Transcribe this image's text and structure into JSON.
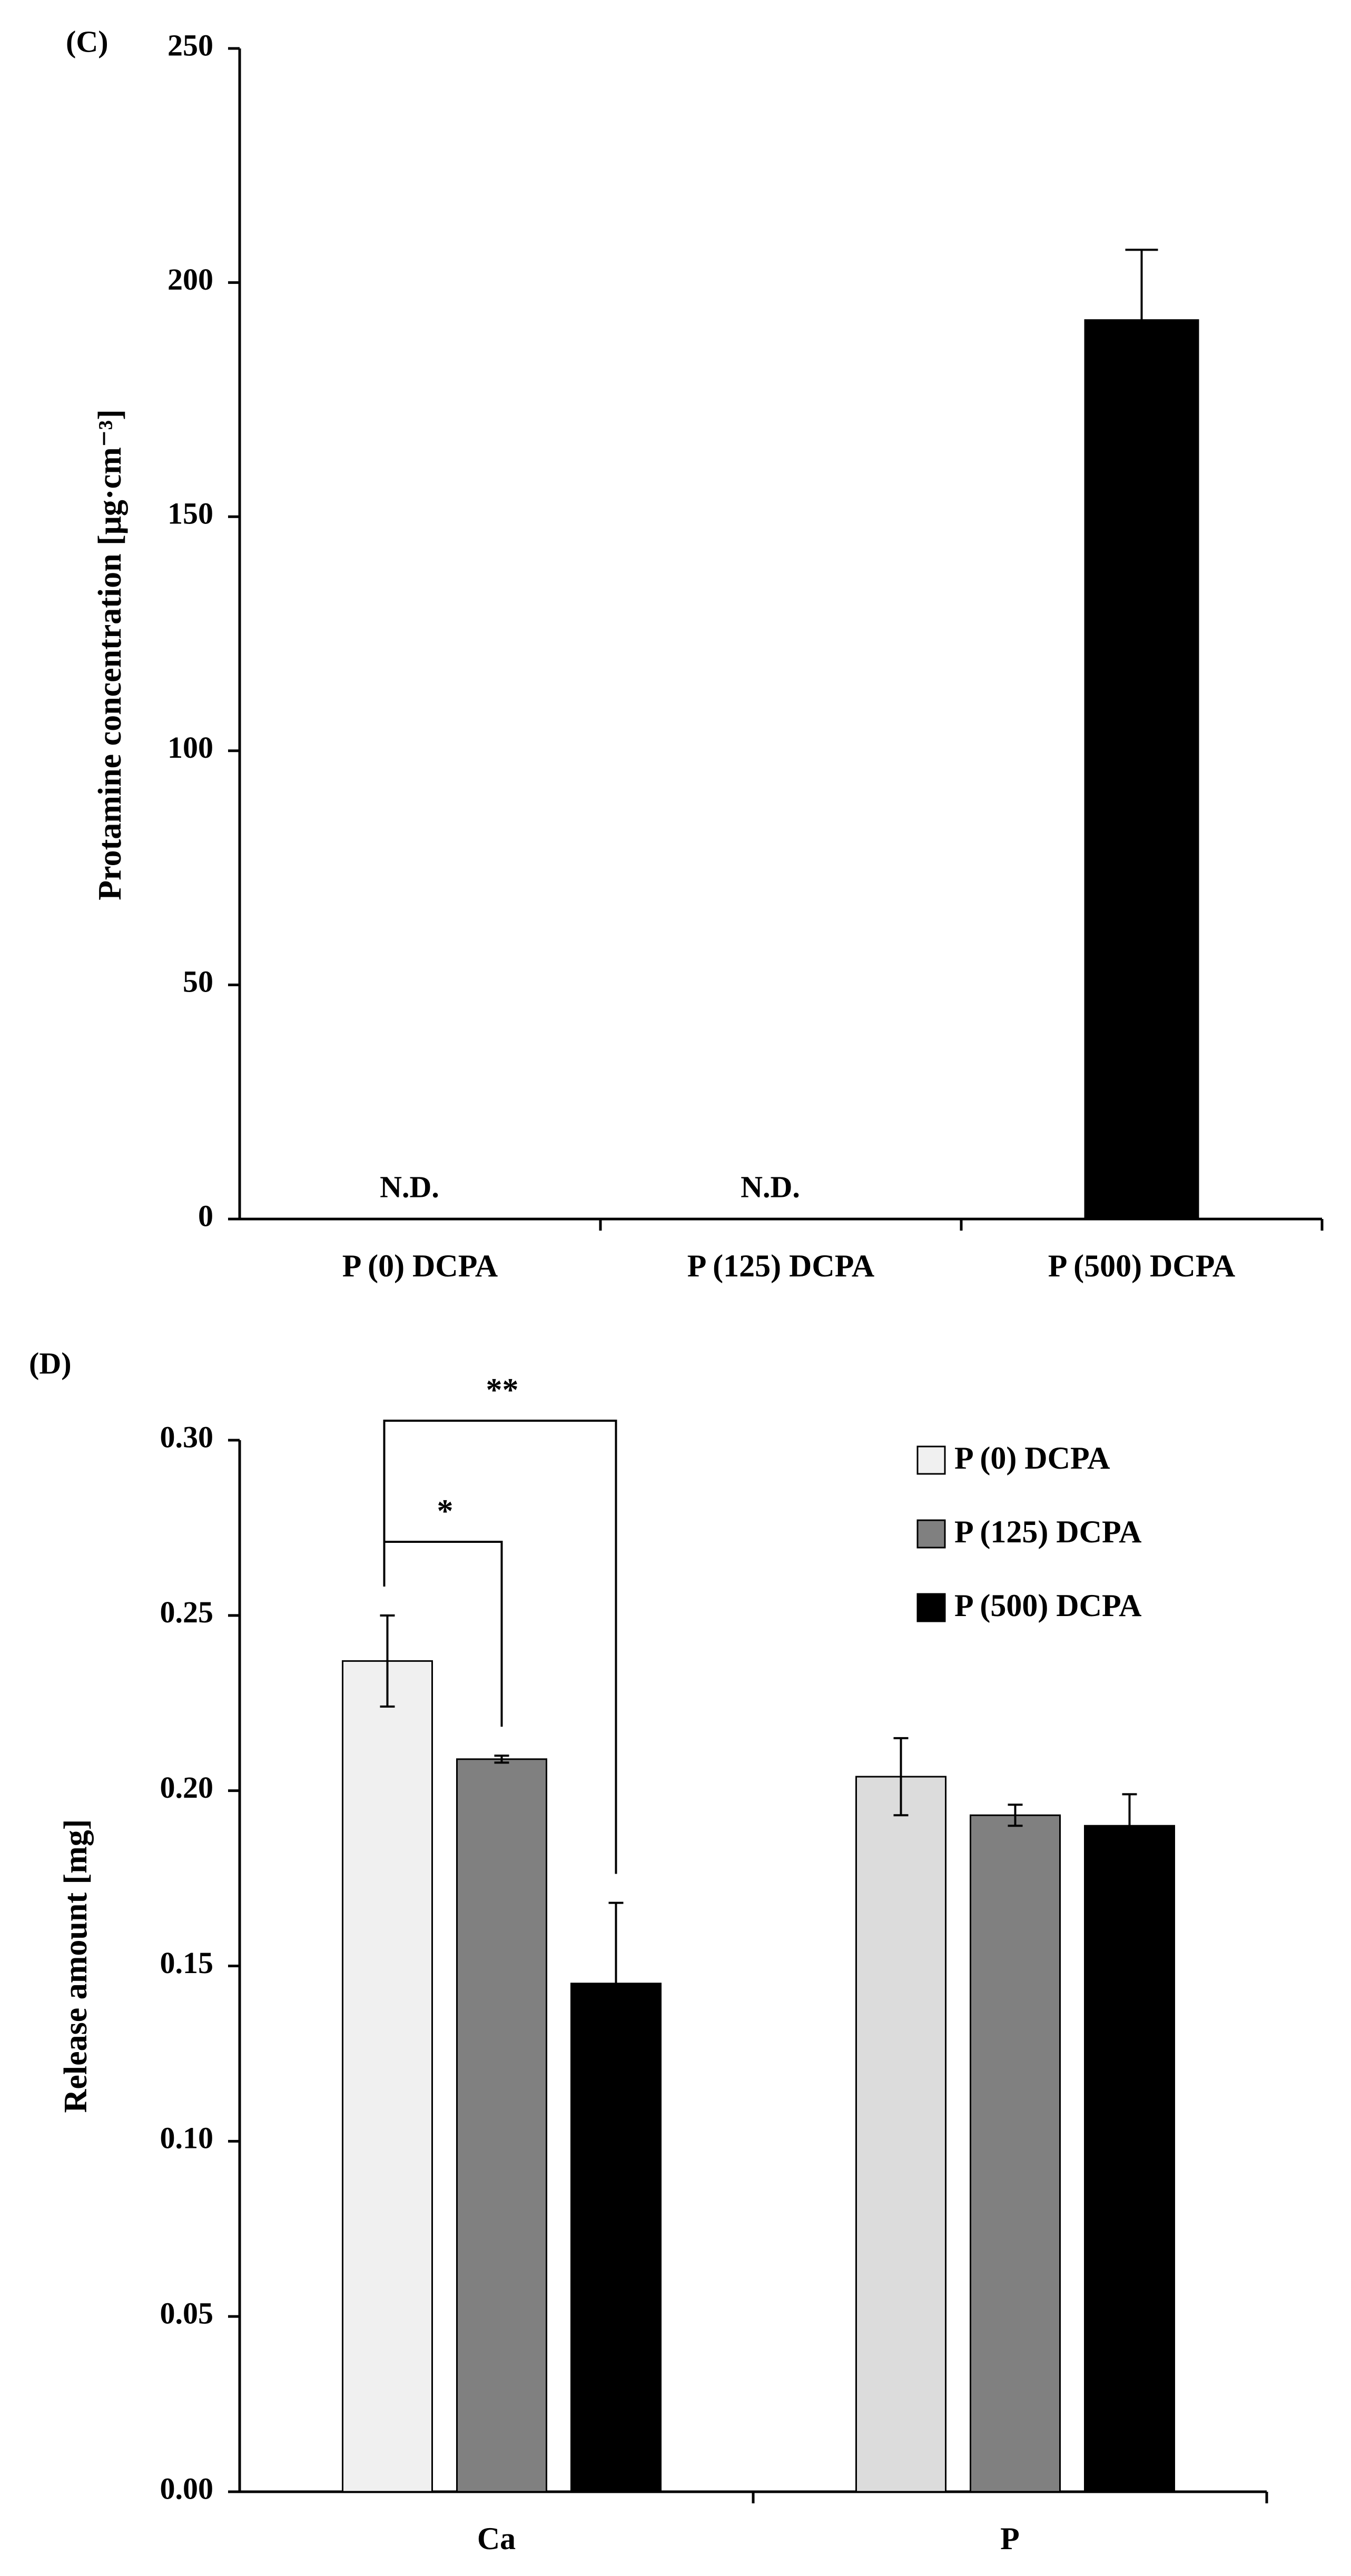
{
  "chart_data": [
    {
      "type": "bar",
      "panel_label": "(C)",
      "title": "",
      "xlabel": "",
      "ylabel": "Protamine concentration [μg·cm⁻³]",
      "ylim": [
        0,
        250
      ],
      "yticks": [
        0,
        50,
        100,
        150,
        200,
        250
      ],
      "categories": [
        "P (0) DCPA",
        "P (125) DCPA",
        "P (500) DCPA"
      ],
      "values": [
        null,
        null,
        192
      ],
      "errors": [
        null,
        null,
        15
      ],
      "bar_colors": [
        "#000000",
        "#000000",
        "#000000"
      ],
      "annotations": [
        {
          "category": "P (0) DCPA",
          "text": "N.D."
        },
        {
          "category": "P (125) DCPA",
          "text": "N.D."
        }
      ],
      "grid": false
    },
    {
      "type": "bar",
      "panel_label": "(D)",
      "title": "",
      "xlabel": "",
      "ylabel": "Release amount [mg]",
      "ylim": [
        0,
        0.3
      ],
      "yticks": [
        "0.00",
        "0.05",
        "0.10",
        "0.15",
        "0.20",
        "0.25",
        "0.30"
      ],
      "categories": [
        "Ca",
        "P"
      ],
      "series": [
        {
          "name": "P (0) DCPA",
          "color": "#f0f0f0",
          "values": [
            0.237,
            0.204
          ],
          "errors": [
            0.013,
            0.011
          ]
        },
        {
          "name": "P (125) DCPA",
          "color": "#808080",
          "values": [
            0.209,
            0.193
          ],
          "errors": [
            0.001,
            0.003
          ]
        },
        {
          "name": "P (500) DCPA",
          "color": "#000000",
          "values": [
            0.145,
            0.19
          ],
          "errors": [
            0.023,
            0.009
          ]
        }
      ],
      "significance": [
        {
          "category": "Ca",
          "from_series": 0,
          "to_series": 1,
          "label": "*"
        },
        {
          "category": "Ca",
          "from_series": 0,
          "to_series": 2,
          "label": "**"
        }
      ],
      "legend": "top-right",
      "grid": false
    }
  ]
}
